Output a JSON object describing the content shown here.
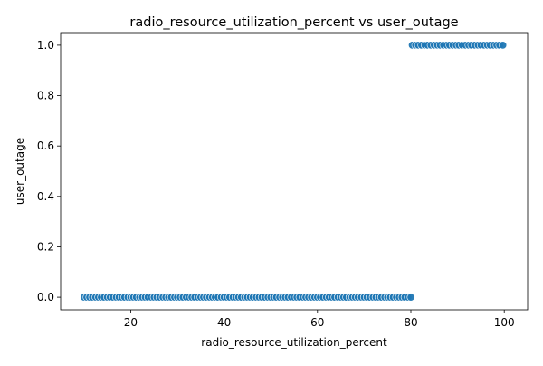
{
  "chart_data": {
    "type": "scatter",
    "title": "radio_resource_utilization_percent vs user_outage",
    "xlabel": "radio_resource_utilization_percent",
    "ylabel": "user_outage",
    "xlim": [
      5,
      105
    ],
    "ylim": [
      -0.05,
      1.05
    ],
    "xticks": [
      20,
      40,
      60,
      80,
      100
    ],
    "yticks": [
      0.0,
      0.2,
      0.4,
      0.6,
      0.8,
      1.0
    ],
    "xtick_labels": [
      "20",
      "40",
      "60",
      "80",
      "100"
    ],
    "ytick_labels": [
      "0.0",
      "0.2",
      "0.4",
      "0.6",
      "0.8",
      "1.0"
    ],
    "grid": false,
    "marker_color": "#1f77b4",
    "marker_edge_color": "#ffffff",
    "series": [
      {
        "x": [
          10.0,
          10.6,
          11.2,
          11.8,
          12.5,
          13.1,
          13.7,
          14.3,
          15.0,
          15.6,
          16.2,
          16.9,
          17.5,
          18.1,
          18.7,
          19.4,
          20.0,
          20.6,
          21.2,
          21.9,
          22.5,
          23.1,
          23.7,
          24.4,
          25.0,
          25.6,
          26.2,
          26.9,
          27.5,
          28.1,
          28.7,
          29.4,
          30.0,
          30.6,
          31.2,
          31.9,
          32.5,
          33.1,
          33.7,
          34.4,
          35.0,
          35.6,
          36.2,
          36.9,
          37.5,
          38.1,
          38.7,
          39.4,
          40.0,
          40.6,
          41.2,
          41.9,
          42.5,
          43.1,
          43.7,
          44.4,
          45.0,
          45.6,
          46.2,
          46.9,
          47.5,
          48.1,
          48.7,
          49.4,
          50.0,
          50.6,
          51.2,
          51.9,
          52.5,
          53.1,
          53.7,
          54.4,
          55.0,
          55.6,
          56.2,
          56.9,
          57.5,
          58.1,
          58.7,
          59.4,
          60.0,
          60.6,
          61.2,
          61.9,
          62.5,
          63.1,
          63.7,
          64.4,
          65.0,
          65.6,
          66.2,
          66.9,
          67.5,
          68.1,
          68.7,
          69.4,
          70.0,
          70.6,
          71.2,
          71.9,
          72.5,
          73.1,
          73.7,
          74.4,
          75.0,
          75.6,
          76.2,
          76.9,
          77.5,
          78.1,
          78.7,
          79.4,
          80.0
        ],
        "y": [
          0,
          0,
          0,
          0,
          0,
          0,
          0,
          0,
          0,
          0,
          0,
          0,
          0,
          0,
          0,
          0,
          0,
          0,
          0,
          0,
          0,
          0,
          0,
          0,
          0,
          0,
          0,
          0,
          0,
          0,
          0,
          0,
          0,
          0,
          0,
          0,
          0,
          0,
          0,
          0,
          0,
          0,
          0,
          0,
          0,
          0,
          0,
          0,
          0,
          0,
          0,
          0,
          0,
          0,
          0,
          0,
          0,
          0,
          0,
          0,
          0,
          0,
          0,
          0,
          0,
          0,
          0,
          0,
          0,
          0,
          0,
          0,
          0,
          0,
          0,
          0,
          0,
          0,
          0,
          0,
          0,
          0,
          0,
          0,
          0,
          0,
          0,
          0,
          0,
          0,
          0,
          0,
          0,
          0,
          0,
          0,
          0,
          0,
          0,
          0,
          0,
          0,
          0,
          0,
          0,
          0,
          0,
          0,
          0,
          0,
          0,
          0,
          0
        ]
      },
      {
        "x": [
          80.3,
          81.0,
          81.6,
          82.3,
          83.0,
          83.6,
          84.3,
          85.0,
          85.7,
          86.3,
          87.0,
          87.7,
          88.3,
          89.0,
          89.7,
          90.3,
          91.0,
          91.7,
          92.4,
          93.0,
          93.7,
          94.4,
          95.0,
          95.7,
          96.4,
          97.0,
          97.7,
          98.4,
          99.0,
          99.7
        ],
        "y": [
          1,
          1,
          1,
          1,
          1,
          1,
          1,
          1,
          1,
          1,
          1,
          1,
          1,
          1,
          1,
          1,
          1,
          1,
          1,
          1,
          1,
          1,
          1,
          1,
          1,
          1,
          1,
          1,
          1,
          1
        ]
      }
    ]
  }
}
